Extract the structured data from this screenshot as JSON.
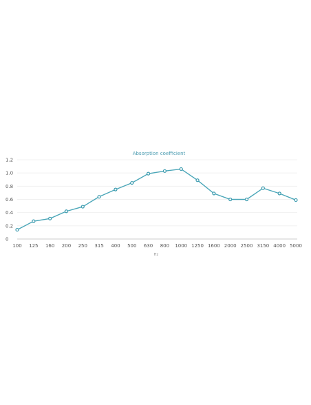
{
  "chart_data": {
    "type": "line",
    "title": "Absorption coefficient",
    "xlabel": "Hz",
    "ylabel": "",
    "categories": [
      "100",
      "125",
      "160",
      "200",
      "250",
      "315",
      "400",
      "500",
      "630",
      "800",
      "1000",
      "1250",
      "1600",
      "2000",
      "2500",
      "3150",
      "4000",
      "5000"
    ],
    "series": [
      {
        "name": "",
        "values": [
          0.14,
          0.27,
          0.31,
          0.42,
          0.49,
          0.64,
          0.75,
          0.85,
          0.99,
          1.03,
          1.06,
          0.89,
          0.69,
          0.6,
          0.6,
          0.77,
          0.69,
          0.59
        ]
      }
    ],
    "yticks": [
      "0",
      "0.2",
      "0.4",
      "0.6",
      "0.8",
      "1.0",
      "1.2"
    ],
    "ylim": [
      0,
      1.2
    ],
    "grid": true,
    "legend": "none",
    "colors": {
      "line": "#4aa6b8",
      "marker_stroke": "#3a9aae",
      "marker_fill": "#ffffff",
      "title": "#4a9bb0"
    }
  }
}
